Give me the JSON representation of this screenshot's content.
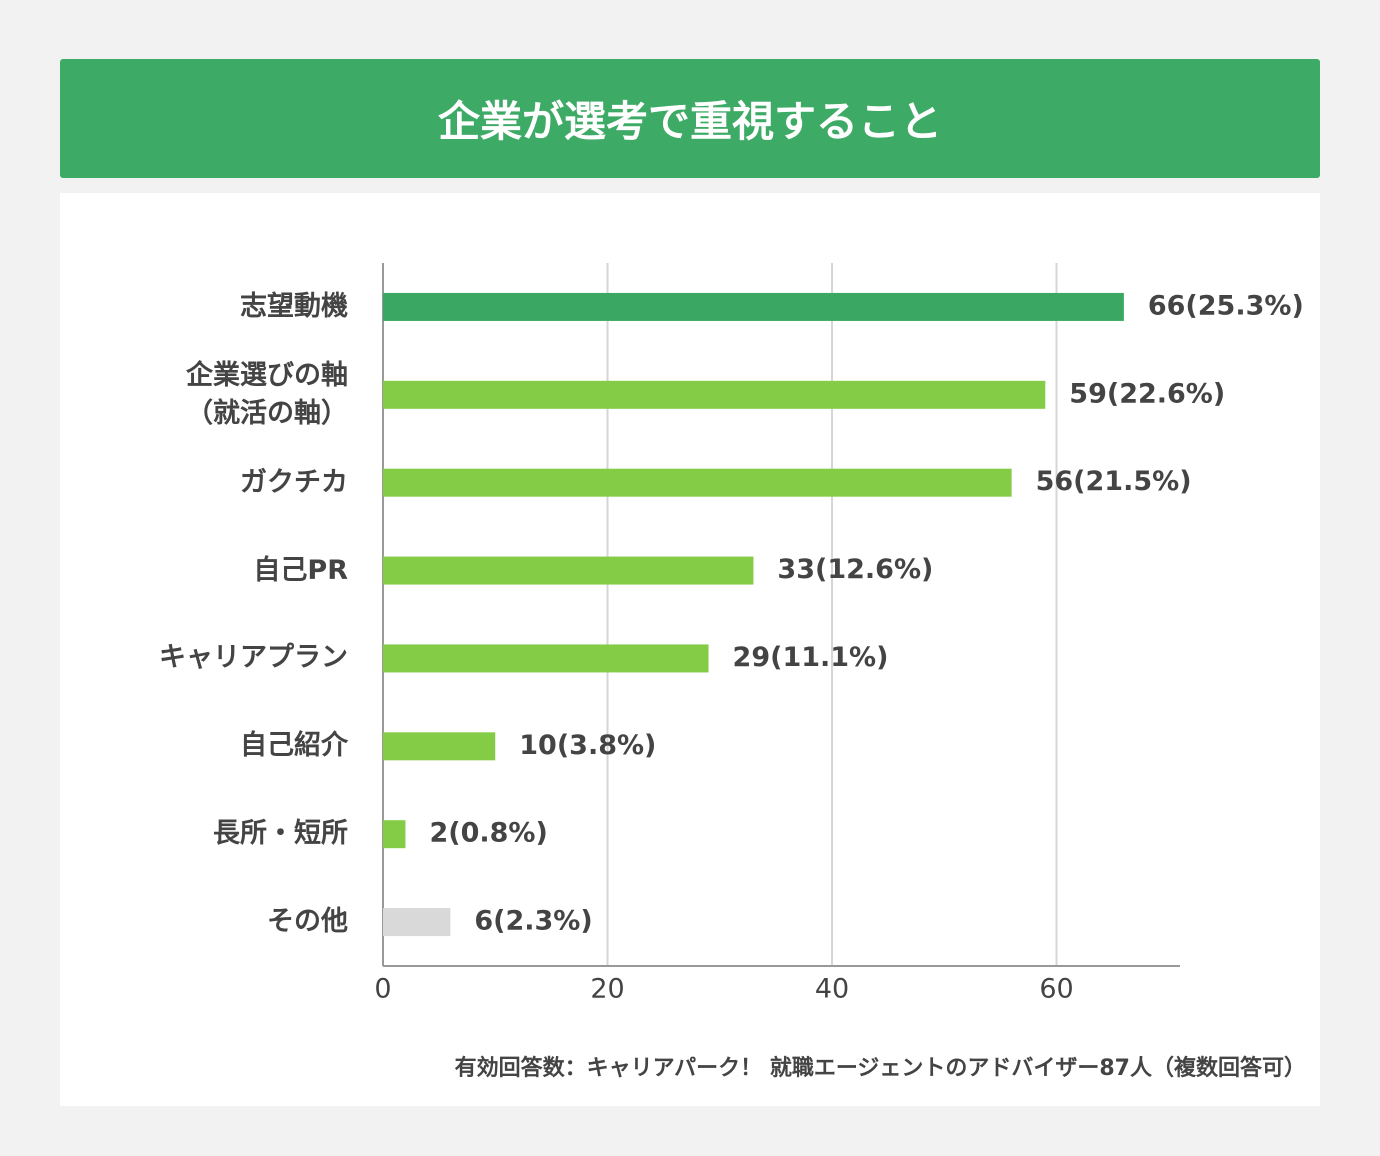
{
  "chart_data": {
    "type": "bar",
    "orientation": "horizontal",
    "title": "企業が選考で重視すること",
    "categories": [
      "志望動機",
      "企業選びの軸\n（就活の軸）",
      "ガクチカ",
      "自己PR",
      "キャリアプラン",
      "自己紹介",
      "長所・短所",
      "その他"
    ],
    "values": [
      66,
      59,
      56,
      33,
      29,
      10,
      2,
      6
    ],
    "value_labels": [
      "66(25.3%)",
      "59(22.6%)",
      "56(21.5%)",
      "33(12.6%)",
      "29(11.1%)",
      "10(3.8%)",
      "2(0.8%)",
      "6(2.3%)"
    ],
    "colors": [
      "#3aa862",
      "#84cc46",
      "#84cc46",
      "#84cc46",
      "#84cc46",
      "#84cc46",
      "#84cc46",
      "#d9d9d9"
    ],
    "xlim": [
      0,
      71
    ],
    "xticks": [
      0,
      20,
      40,
      60
    ],
    "grid": true,
    "note": "有効回答数：キャリアパーク！ 就職エージェントのアドバイザー87人（複数回答可）"
  }
}
